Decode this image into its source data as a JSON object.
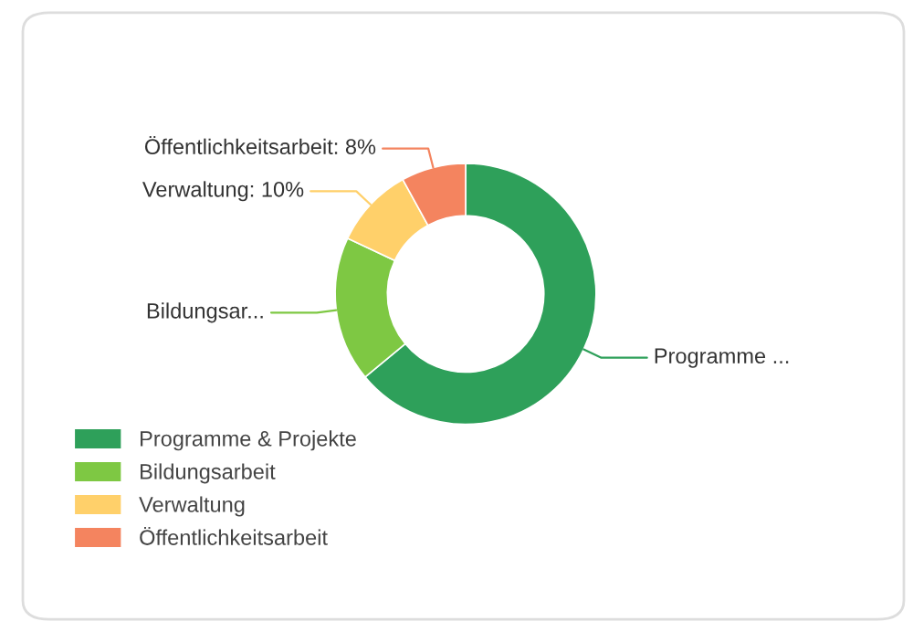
{
  "chart_data": {
    "type": "donut",
    "categories": [
      "Programme & Projekte",
      "Bildungsarbeit",
      "Verwaltung",
      "Öffentlichkeitsarbeit"
    ],
    "values": [
      64,
      18,
      10,
      8
    ],
    "colors": [
      "#2ea05a",
      "#7ec843",
      "#ffd06a",
      "#f4845f"
    ],
    "value_labels": [
      "Programme ...",
      "Bildungsar...",
      "Verwaltung: 10%",
      "Öffentlichkeitsarbeit: 8%"
    ],
    "legend": "bottom left"
  }
}
